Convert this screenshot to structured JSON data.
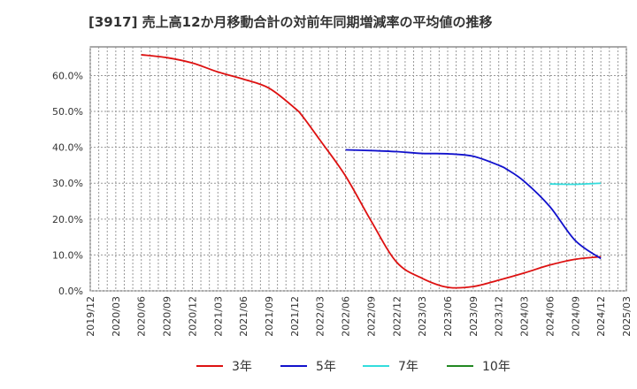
{
  "chart_data": {
    "type": "line",
    "title": "[3917]  売上高12か月移動合計の対前年同期増減率の平均値の推移",
    "xlabel": "",
    "ylabel": "",
    "ylim": [
      0,
      68
    ],
    "y_ticks": [
      "0.0%",
      "10.0%",
      "20.0%",
      "30.0%",
      "40.0%",
      "50.0%",
      "60.0%"
    ],
    "y_tick_values": [
      0,
      10,
      20,
      30,
      40,
      50,
      60
    ],
    "x_ticks": [
      "2019/12",
      "2020/03",
      "2020/06",
      "2020/09",
      "2020/12",
      "2021/03",
      "2021/06",
      "2021/09",
      "2021/12",
      "2022/03",
      "2022/06",
      "2022/09",
      "2022/12",
      "2023/03",
      "2023/06",
      "2023/09",
      "2023/12",
      "2024/03",
      "2024/06",
      "2024/09",
      "2024/12",
      "2025/03"
    ],
    "grid": true,
    "legend_position": "bottom",
    "series": [
      {
        "name": "3年",
        "color": "#dd1111",
        "points": [
          [
            "2020/06",
            65.8
          ],
          [
            "2020/09",
            65.0
          ],
          [
            "2020/12",
            63.5
          ],
          [
            "2021/03",
            61.0
          ],
          [
            "2021/06",
            59.0
          ],
          [
            "2021/09",
            56.5
          ],
          [
            "2021/12",
            51.0
          ],
          [
            "2022/01",
            48.5
          ],
          [
            "2022/03",
            42.0
          ],
          [
            "2022/06",
            32.0
          ],
          [
            "2022/09",
            19.5
          ],
          [
            "2022/12",
            8.0
          ],
          [
            "2023/03",
            3.5
          ],
          [
            "2023/06",
            1.0
          ],
          [
            "2023/09",
            1.2
          ],
          [
            "2023/12",
            3.0
          ],
          [
            "2024/03",
            5.0
          ],
          [
            "2024/06",
            7.2
          ],
          [
            "2024/09",
            8.8
          ],
          [
            "2024/12",
            9.5
          ]
        ]
      },
      {
        "name": "5年",
        "color": "#1111cc",
        "points": [
          [
            "2022/06",
            39.3
          ],
          [
            "2022/09",
            39.1
          ],
          [
            "2022/12",
            38.8
          ],
          [
            "2023/03",
            38.3
          ],
          [
            "2023/06",
            38.2
          ],
          [
            "2023/09",
            37.5
          ],
          [
            "2023/12",
            35.0
          ],
          [
            "2024/01",
            33.8
          ],
          [
            "2024/03",
            30.5
          ],
          [
            "2024/06",
            23.5
          ],
          [
            "2024/09",
            14.0
          ],
          [
            "2024/12",
            9.0
          ]
        ]
      },
      {
        "name": "7年",
        "color": "#33dddd",
        "points": [
          [
            "2024/06",
            29.8
          ],
          [
            "2024/09",
            29.7
          ],
          [
            "2024/12",
            30.0
          ]
        ]
      },
      {
        "name": "10年",
        "color": "#228822",
        "points": []
      }
    ]
  }
}
